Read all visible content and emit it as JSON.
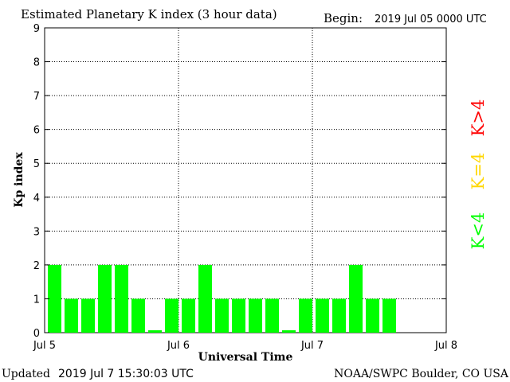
{
  "chart_data": {
    "type": "bar",
    "title": "Estimated Planetary K index (3 hour data)",
    "begin_label": "Begin:",
    "begin_value": "2019 Jul 05 0000 UTC",
    "ylabel": "Kp index",
    "xlabel": "Universal Time",
    "ylim": [
      0,
      9
    ],
    "yticks": [
      "0",
      "1",
      "2",
      "3",
      "4",
      "5",
      "6",
      "7",
      "8",
      "9"
    ],
    "xlim_days": [
      0,
      3
    ],
    "xticks": [
      {
        "label": "Jul 5",
        "day": 0
      },
      {
        "label": "Jul 6",
        "day": 1
      },
      {
        "label": "Jul 7",
        "day": 2
      },
      {
        "label": "Jul 8",
        "day": 3
      }
    ],
    "bar_interval_hours": 3,
    "values": [
      2,
      1,
      1,
      2,
      2,
      1,
      0,
      1,
      1,
      2,
      1,
      1,
      1,
      1,
      0,
      1,
      1,
      1,
      2,
      1,
      1
    ],
    "bar_color": "#00ff00",
    "grid": true,
    "legend": [
      {
        "text": "K<4",
        "color": "#00ff00"
      },
      {
        "text": "K=4",
        "color": "#ffd700"
      },
      {
        "text": "K>4",
        "color": "#ff0000"
      }
    ]
  },
  "footer": {
    "updated_label": "Updated",
    "updated_value": "2019 Jul  7 15:30:03 UTC",
    "source": "NOAA/SWPC Boulder, CO USA"
  }
}
